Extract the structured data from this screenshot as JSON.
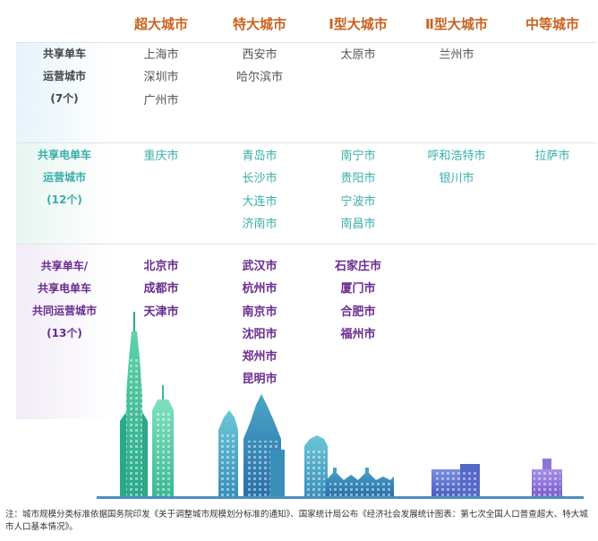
{
  "headers": [
    "超大城市",
    "特大城市",
    "Ⅰ型大城市",
    "Ⅱ型大城市",
    "中等城市"
  ],
  "rows": [
    {
      "label": [
        "共享单车",
        "运营城市",
        "(7个)"
      ],
      "cells": [
        [
          "上海市",
          "深圳市",
          "广州市"
        ],
        [
          "西安市",
          "哈尔滨市"
        ],
        [
          "太原市"
        ],
        [
          "兰州市"
        ],
        []
      ]
    },
    {
      "label": [
        "共享电单车",
        "运营城市",
        "(12个)"
      ],
      "cells": [
        [
          "重庆市"
        ],
        [
          "青岛市",
          "长沙市",
          "大连市",
          "济南市"
        ],
        [
          "南宁市",
          "贵阳市",
          "宁波市",
          "南昌市"
        ],
        [
          "呼和浩特市",
          "银川市"
        ],
        [
          "拉萨市"
        ]
      ]
    },
    {
      "label": [
        "共享单车/",
        "共享电单车",
        "共同运营城市",
        "(13个)"
      ],
      "cells": [
        [
          "北京市",
          "成都市",
          "天津市"
        ],
        [
          "武汉市",
          "杭州市",
          "南京市",
          "沈阳市",
          "郑州市",
          "昆明市"
        ],
        [
          "石家庄市",
          "厦门市",
          "合肥市",
          "福州市"
        ],
        [],
        []
      ]
    }
  ],
  "note": "注：城市规模分类标准依据国务院印发《关于调整城市规模划分标准的通知》、国家统计局公布《经济社会发展统计图表：第七次全国人口普查超大、特大城市人口基本情况》。",
  "colors": {
    "header": "#c8621e",
    "row1": "#555555",
    "row2": "#3aaea8",
    "row3": "#6a2c8e"
  }
}
